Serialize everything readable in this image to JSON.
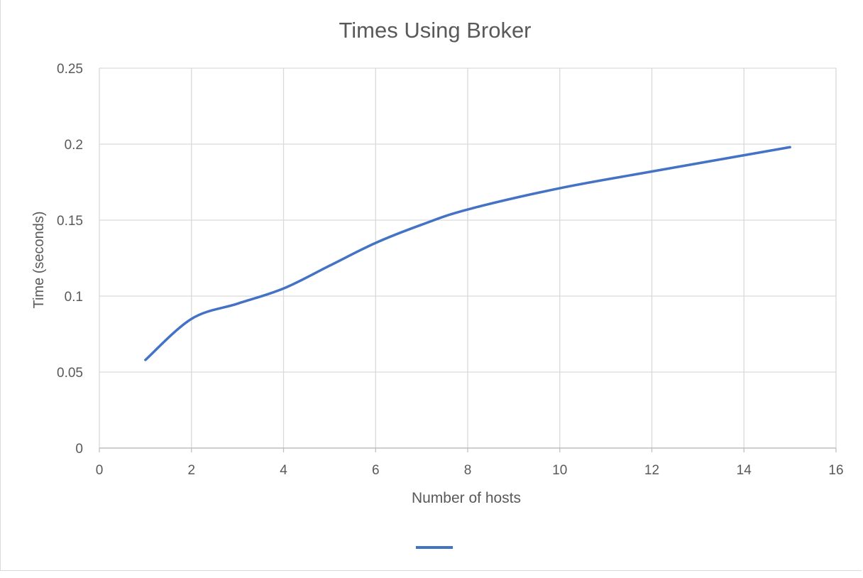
{
  "chart_data": {
    "type": "line",
    "title": "Times Using Broker",
    "xlabel": "Number of hosts",
    "ylabel": "Time (seconds)",
    "xlim": [
      0,
      16
    ],
    "ylim": [
      0,
      0.25
    ],
    "xticks": [
      "0",
      "2",
      "4",
      "6",
      "8",
      "10",
      "12",
      "14",
      "16"
    ],
    "yticks": [
      "0",
      "0.05",
      "0.1",
      "0.15",
      "0.2",
      "0.25"
    ],
    "grid": true,
    "smooth": true,
    "legend": "bottom",
    "series": [
      {
        "name": "",
        "color": "#4472c4",
        "x": [
          1,
          2,
          3,
          4,
          5,
          6,
          7,
          8,
          10,
          12,
          15
        ],
        "y": [
          0.058,
          0.085,
          0.095,
          0.105,
          0.12,
          0.135,
          0.147,
          0.157,
          0.171,
          0.182,
          0.198
        ]
      }
    ]
  }
}
